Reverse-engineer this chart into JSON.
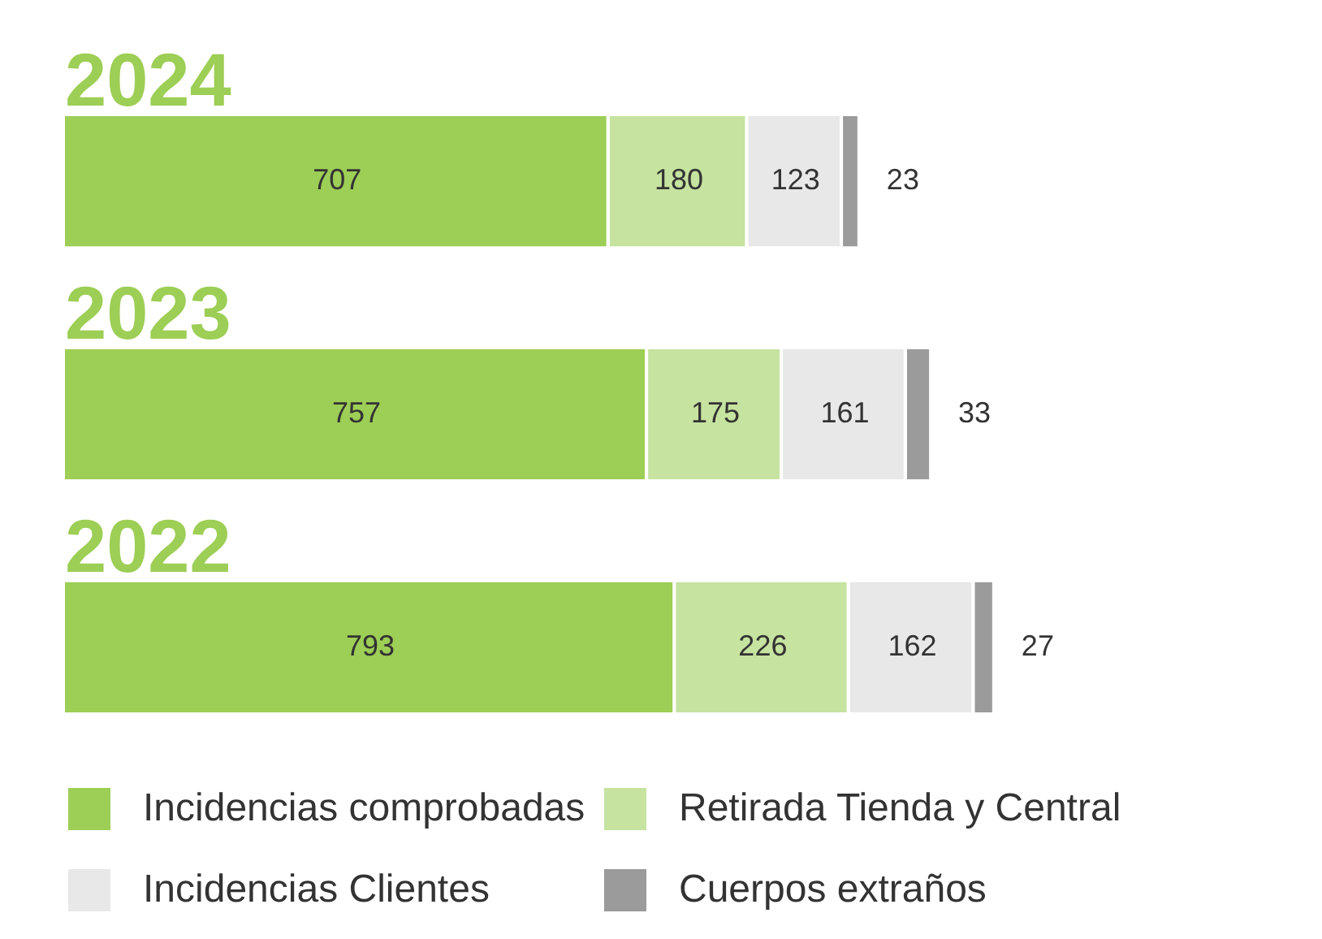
{
  "chart_data": {
    "type": "bar",
    "orientation": "horizontal",
    "stacked": true,
    "categories": [
      "2024",
      "2023",
      "2022"
    ],
    "series": [
      {
        "name": "Incidencias comprobadas",
        "color": "#9dce55",
        "values": [
          707,
          757,
          793
        ]
      },
      {
        "name": "Retirada Tienda y Central",
        "color": "#c6e3a0",
        "values": [
          180,
          175,
          226
        ]
      },
      {
        "name": "Incidencias Clientes",
        "color": "#e8e8e8",
        "values": [
          123,
          161,
          162
        ]
      },
      {
        "name": "Cuerpos extraños",
        "color": "#9b9b9b",
        "values": [
          23,
          33,
          27
        ]
      }
    ],
    "data_labels": true,
    "legend": "bottom",
    "tick_labels": "y"
  }
}
